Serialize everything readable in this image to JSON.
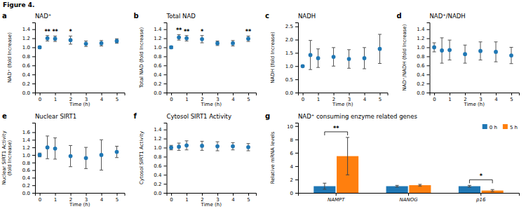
{
  "title": "Figure 4.",
  "chart_data": [
    {
      "type": "scatter",
      "title": "NAD⁺",
      "xlabel": "Time (h)",
      "ylabel": "NAD⁺ (fold Increase)",
      "x": [
        0,
        0.5,
        1,
        2,
        3,
        4,
        5
      ],
      "values": [
        1.0,
        1.2,
        1.19,
        1.16,
        1.08,
        1.09,
        1.14
      ],
      "errors": [
        0.03,
        0.06,
        0.06,
        0.09,
        0.06,
        0.06,
        0.05
      ],
      "xlim": [
        -0.3,
        5.5
      ],
      "xticks": [
        0,
        1,
        2,
        3,
        4,
        5
      ],
      "ylim": [
        0.0,
        1.55
      ],
      "yticks": [
        {
          "value": 0.0,
          "label": "0.0"
        },
        0.2,
        0.4,
        0.6,
        0.8,
        {
          "value": 1.0,
          "label": "1.0"
        },
        1.2,
        1.4
      ],
      "marker": "circle",
      "grid": false,
      "annotations": [
        {
          "text": "a"
        },
        {
          "x": 0.5,
          "text": "**"
        },
        {
          "x": 1.0,
          "text": "**"
        },
        {
          "x": 2.0,
          "text": "*"
        }
      ]
    },
    {
      "type": "scatter",
      "title": "Total NAD",
      "xlabel": "Time (h)",
      "ylabel": "Total NAD (fold Increase)",
      "x": [
        0,
        0.5,
        1,
        2,
        3,
        4,
        5
      ],
      "values": [
        1.0,
        1.22,
        1.2,
        1.18,
        1.09,
        1.09,
        1.19
      ],
      "errors": [
        0.03,
        0.06,
        0.06,
        0.08,
        0.05,
        0.06,
        0.06
      ],
      "xlim": [
        -0.3,
        5.5
      ],
      "xticks": [
        0,
        1,
        2,
        3,
        4,
        5
      ],
      "ylim": [
        0.0,
        1.55
      ],
      "yticks": [
        {
          "value": 0.0,
          "label": "0.0"
        },
        0.2,
        0.4,
        0.6,
        0.8,
        {
          "value": 1.0,
          "label": "1.0"
        },
        1.2,
        1.4
      ],
      "marker": "circle",
      "grid": false,
      "annotations": [
        {
          "text": "b"
        },
        {
          "x": 0.5,
          "text": "**"
        },
        {
          "x": 1.0,
          "text": "**"
        },
        {
          "x": 2.0,
          "text": "*"
        },
        {
          "x": 5.0,
          "text": "**"
        }
      ]
    },
    {
      "type": "scatter",
      "title": "NADH",
      "xlabel": "Time (h)",
      "ylabel": "NADH (fold Increase)",
      "x": [
        0,
        0.5,
        1,
        2,
        3,
        4,
        5
      ],
      "values": [
        1.0,
        1.42,
        1.3,
        1.35,
        1.27,
        1.3,
        1.65
      ],
      "errors": [
        0.04,
        0.55,
        0.35,
        0.35,
        0.35,
        0.4,
        0.55
      ],
      "xlim": [
        -0.3,
        5.5
      ],
      "xticks": [
        0,
        1,
        2,
        3,
        4,
        5
      ],
      "ylim": [
        0.0,
        2.65
      ],
      "yticks": [
        {
          "value": 0.0,
          "label": "0.0"
        },
        0.5,
        {
          "value": 1.0,
          "label": "1.0"
        },
        1.5,
        {
          "value": 2.0,
          "label": "2.0"
        },
        2.5
      ],
      "marker": "circle",
      "grid": false,
      "annotations": [
        {
          "text": "c"
        }
      ]
    },
    {
      "type": "scatter",
      "title": "NAD⁺/NADH",
      "xlabel": "Time (h)",
      "ylabel": "NAD⁺/NADH (fold Increase)",
      "x": [
        0,
        0.5,
        1,
        2,
        3,
        4,
        5
      ],
      "values": [
        1.0,
        0.93,
        0.94,
        0.85,
        0.92,
        0.9,
        0.82
      ],
      "errors": [
        0.1,
        0.28,
        0.22,
        0.2,
        0.2,
        0.22,
        0.18
      ],
      "xlim": [
        -0.3,
        5.5
      ],
      "xticks": [
        0,
        1,
        2,
        3,
        4,
        5
      ],
      "ylim": [
        0.0,
        1.55
      ],
      "yticks": [
        {
          "value": 0.0,
          "label": "0.0"
        },
        0.2,
        0.4,
        0.6,
        0.8,
        {
          "value": 1.0,
          "label": "1.0"
        },
        1.2,
        1.4
      ],
      "marker": "circle",
      "grid": false,
      "annotations": [
        {
          "text": "d"
        }
      ]
    },
    {
      "type": "scatter",
      "title": "Nuclear SIRT1",
      "xlabel": "Time (h)",
      "ylabel": "Nuclear SIRT1 Activity\n(fold Increase)",
      "x": [
        0,
        0.5,
        1,
        2,
        3,
        4,
        5
      ],
      "values": [
        1.0,
        1.2,
        1.17,
        0.97,
        0.92,
        1.0,
        1.08
      ],
      "errors": [
        0.05,
        0.3,
        0.28,
        0.28,
        0.28,
        0.4,
        0.15
      ],
      "xlim": [
        -0.3,
        5.5
      ],
      "xticks": [
        0,
        1,
        2,
        3,
        4,
        5
      ],
      "ylim": [
        0.0,
        1.85
      ],
      "yticks": [
        {
          "value": 0.0,
          "label": "0.0"
        },
        0.2,
        0.4,
        0.6,
        0.8,
        {
          "value": 1.0,
          "label": "1.0"
        },
        1.2,
        1.4,
        1.6
      ],
      "marker": "circle",
      "grid": false,
      "annotations": [
        {
          "text": "e"
        }
      ]
    },
    {
      "type": "scatter",
      "title": "Cytosol SIRT1 Activity",
      "xlabel": "Time (h)",
      "ylabel": "Cytosol SIRT1 Activity",
      "x": [
        0,
        0.5,
        1,
        2,
        3,
        4,
        5
      ],
      "values": [
        1.0,
        1.02,
        1.05,
        1.04,
        1.03,
        1.03,
        1.01
      ],
      "errors": [
        0.05,
        0.08,
        0.1,
        0.1,
        0.1,
        0.08,
        0.08
      ],
      "xlim": [
        -0.3,
        5.5
      ],
      "xticks": [
        0,
        1,
        2,
        3,
        4,
        5
      ],
      "ylim": [
        0.0,
        1.55
      ],
      "yticks": [
        {
          "value": 0.0,
          "label": "0.0"
        },
        0.2,
        0.4,
        0.6,
        0.8,
        {
          "value": 1.0,
          "label": "1.0"
        },
        1.2,
        1.4
      ],
      "marker": "circle",
      "grid": false,
      "annotations": [
        {
          "text": "f"
        }
      ]
    },
    {
      "type": "bar",
      "title": "NAD⁺ consuming enzyme related genes",
      "ylabel": "Relative mRNA levels",
      "categories": [
        "NAMPT",
        "NANOG",
        "p16"
      ],
      "series": [
        {
          "name": "0 h",
          "values": [
            1.0,
            1.0,
            1.0
          ],
          "errors": [
            0.45,
            0.12,
            0.12
          ]
        },
        {
          "name": "5 h",
          "values": [
            5.5,
            1.15,
            0.35
          ],
          "errors": [
            2.8,
            0.12,
            0.15
          ]
        }
      ],
      "ylim": [
        0.0,
        10.5
      ],
      "yticks": [
        0,
        2,
        4,
        6,
        8,
        10
      ],
      "legend": "top-right",
      "grid": false,
      "annotations": [
        {
          "text": "g"
        },
        {
          "category": "NAMPT",
          "text": "**"
        },
        {
          "category": "p16",
          "text": "*"
        }
      ]
    }
  ]
}
